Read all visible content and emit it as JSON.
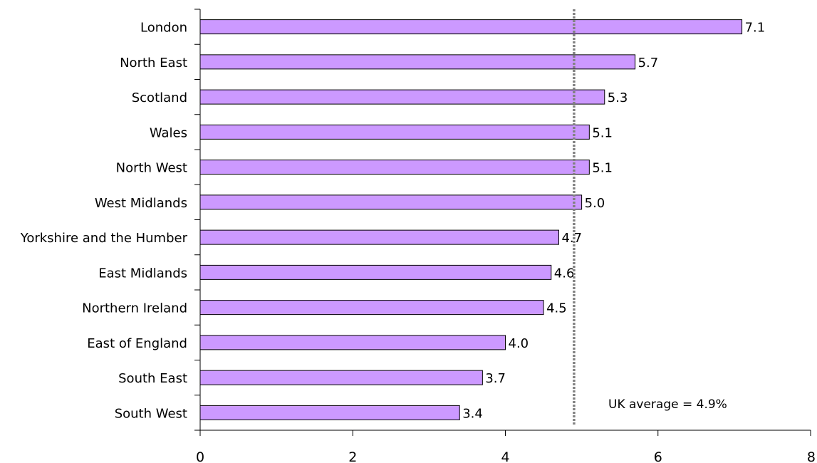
{
  "chart_data": {
    "type": "bar",
    "orientation": "horizontal",
    "title": "",
    "xlabel": "",
    "ylabel": "",
    "categories": [
      "London",
      "North East",
      "Scotland",
      "Wales",
      "North West",
      "West Midlands",
      "Yorkshire and the Humber",
      "East Midlands",
      "Northern Ireland",
      "East of England",
      "South East",
      "South West"
    ],
    "values": [
      7.1,
      5.7,
      5.3,
      5.1,
      5.1,
      5.0,
      4.7,
      4.6,
      4.5,
      4.0,
      3.7,
      3.4
    ],
    "data_labels": [
      "7.1",
      "5.7",
      "5.3",
      "5.1",
      "5.1",
      "5.0",
      "4.7",
      "4.6",
      "4.5",
      "4.0",
      "3.7",
      "3.4"
    ],
    "xlim": [
      0,
      8
    ],
    "xticks": [
      0,
      2,
      4,
      6,
      8
    ],
    "xtick_labels": [
      "0",
      "2",
      "4",
      "6",
      "8"
    ],
    "grid": false,
    "legend": "none",
    "reference_line": {
      "value": 4.9,
      "style": "dotted"
    },
    "annotation": "UK average = 4.9%",
    "colors": {
      "bar_fill": "#cc99ff",
      "bar_stroke": "#000000",
      "reference_line": "#808080",
      "axis": "#000000"
    }
  }
}
